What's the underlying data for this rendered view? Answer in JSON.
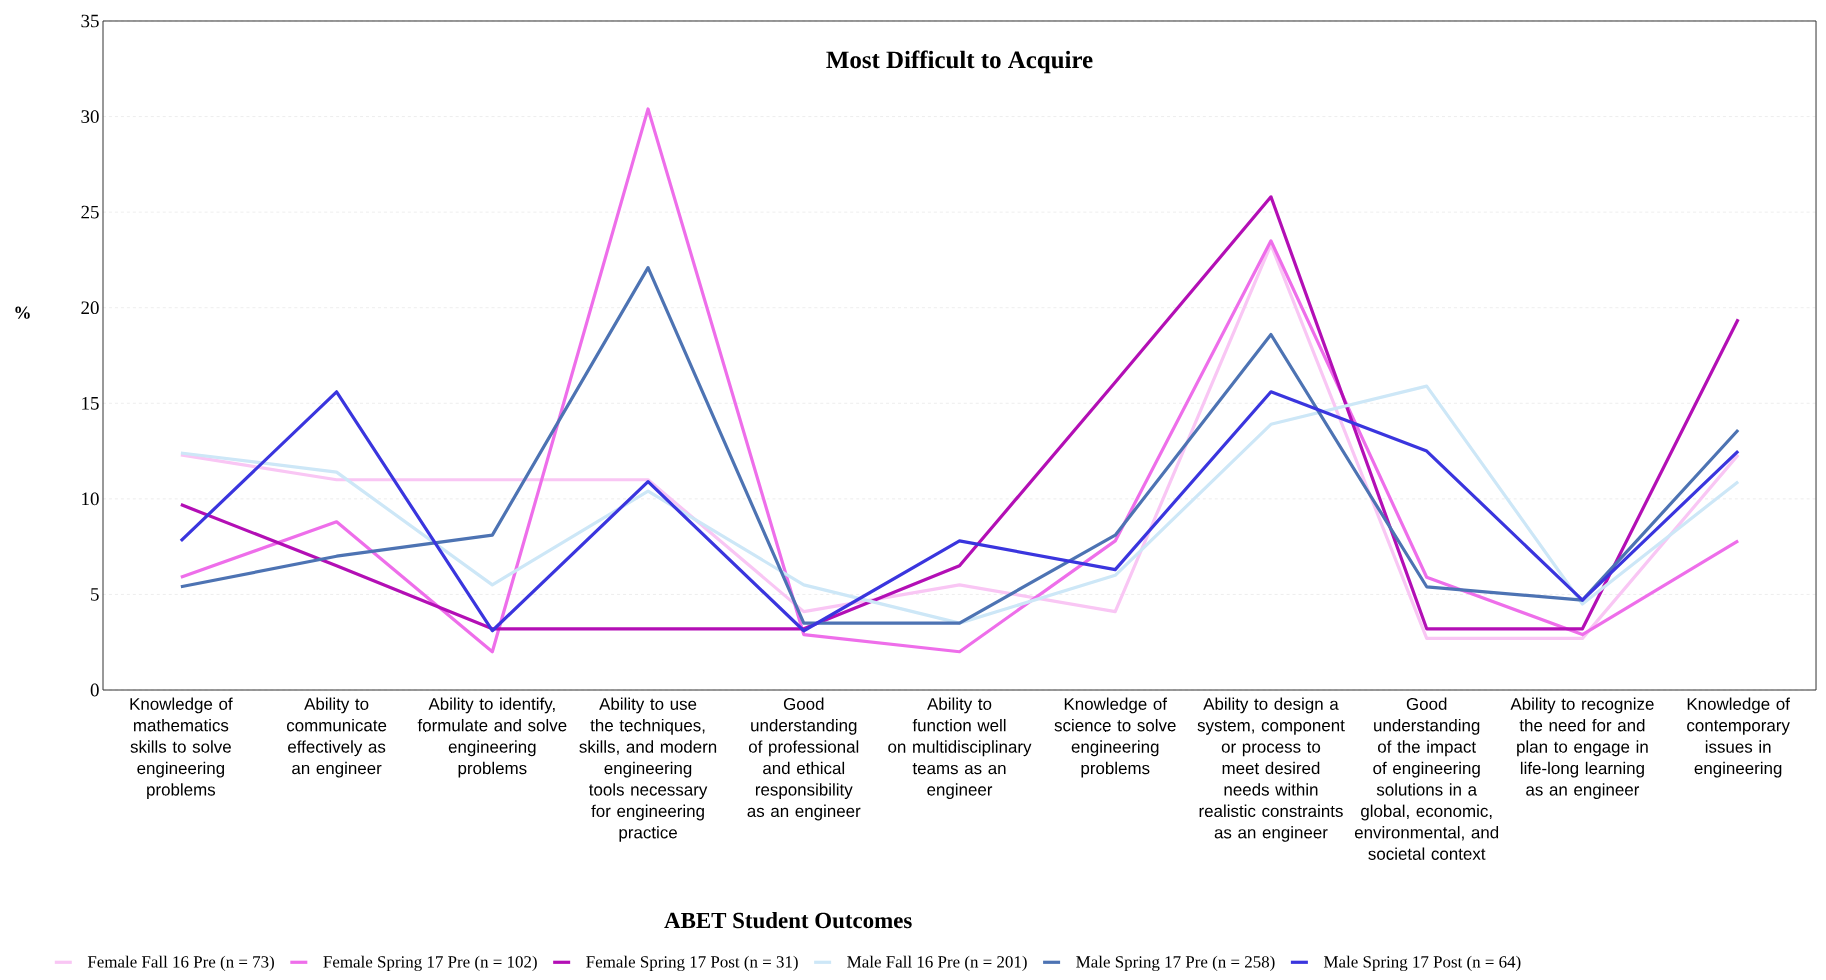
{
  "chart_data": {
    "type": "line",
    "title": "Most Difficult to Acquire",
    "xlabel": "ABET Student Outcomes",
    "ylabel": "%",
    "categories": [
      "Knowledge of mathematics skills to solve engineering problems",
      "Ability to communicate effectively as an engineer",
      "Ability to identify, formulate and solve engineering problems",
      "Ability to use the techniques, skills, and modern engineering tools necessary for engineering practice",
      "Good understanding of professional and ethical responsibility as an engineer",
      "Ability to function well on multidisciplinary teams as an engineer",
      "Knowledge of science to solve engineering problems",
      "Ability to design a system, component or process to meet desired needs within realistic constraints as an engineer",
      "Good understanding of the impact of engineering solutions in a global, economic, environmental, and societal context",
      "Ability to recognize the need for and plan to engage in life-long learning as an engineer",
      "Knowledge of contemporary issues in engineering"
    ],
    "series": [
      {
        "name": "Female Fall 16 Pre  (n = 73)",
        "color": "#f9c6f4",
        "values": [
          12.3,
          11.0,
          11.0,
          11.0,
          4.1,
          5.5,
          4.1,
          23.3,
          2.7,
          2.7,
          12.3
        ]
      },
      {
        "name": "Female Spring 17 Pre (n = 102)",
        "color": "#ee6eea",
        "values": [
          5.9,
          8.8,
          2.0,
          30.4,
          2.9,
          2.0,
          7.8,
          23.5,
          5.9,
          2.9,
          7.8
        ]
      },
      {
        "name": "Female Spring 17 Post (n = 31)",
        "color": "#b30fb5",
        "values": [
          9.7,
          6.5,
          3.2,
          3.2,
          3.2,
          6.5,
          16.1,
          25.8,
          3.2,
          3.2,
          19.4
        ]
      },
      {
        "name": "Male Fall 16 Pre  (n = 201)",
        "color": "#cde7f7",
        "values": [
          12.4,
          11.4,
          5.5,
          10.4,
          5.5,
          3.5,
          6.0,
          13.9,
          15.9,
          4.5,
          10.9
        ]
      },
      {
        "name": "Male Spring 17 Pre (n = 258)",
        "color": "#4d73b3",
        "values": [
          5.4,
          7.0,
          8.1,
          22.1,
          3.5,
          3.5,
          8.1,
          18.6,
          5.4,
          4.7,
          13.6
        ]
      },
      {
        "name": "Male Spring 17 Post (n = 64)",
        "color": "#3a35de",
        "values": [
          7.8,
          15.6,
          3.1,
          10.9,
          3.1,
          7.8,
          6.3,
          15.6,
          12.5,
          4.7,
          12.5
        ]
      }
    ],
    "ylim": [
      0,
      35
    ],
    "yticks": [
      0,
      5,
      10,
      15,
      20,
      25,
      30,
      35
    ],
    "grid": "y",
    "legend": "bottom",
    "marker": "none",
    "line_style": "solid"
  }
}
